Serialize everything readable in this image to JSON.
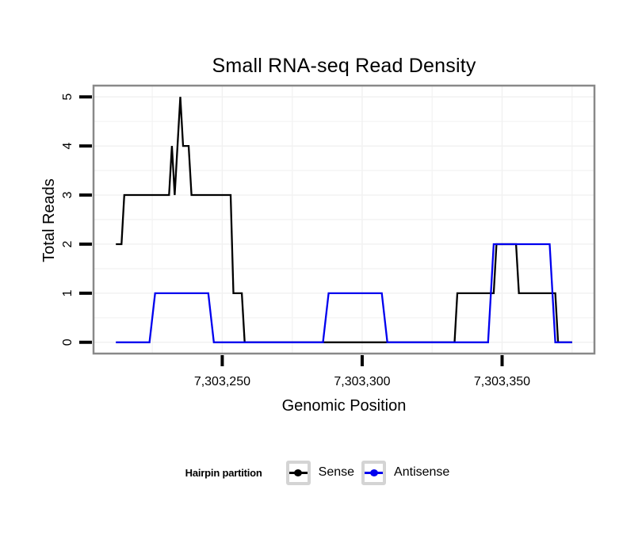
{
  "chart_data": {
    "type": "line",
    "title": "Small RNA-seq Read Density",
    "xlabel": "Genomic Position",
    "ylabel": "Total Reads",
    "x_domain": [
      7303204,
      7303383
    ],
    "y_domain": [
      -0.23,
      5.23
    ],
    "x_ticks": [
      7303250,
      7303300,
      7303350
    ],
    "x_tick_labels": [
      "7,303,250",
      "7,303,300",
      "7,303,350"
    ],
    "x_minor_gridlines": [
      7303225,
      7303275,
      7303325,
      7303375
    ],
    "y_ticks": [
      0,
      1,
      2,
      3,
      4,
      5
    ],
    "y_tick_labels": [
      "0",
      "1",
      "2",
      "3",
      "4",
      "5"
    ],
    "y_minor_gridlines": [
      0.5,
      1.5,
      2.5,
      3.5,
      4.5
    ],
    "grid": true,
    "legend_position": "bottom",
    "legend_title": "Hairpin partition",
    "series": [
      {
        "name": "Sense",
        "color": "#000000",
        "points": [
          [
            7303212,
            2
          ],
          [
            7303214,
            2
          ],
          [
            7303215,
            3
          ],
          [
            7303231,
            3
          ],
          [
            7303232,
            4
          ],
          [
            7303233,
            3
          ],
          [
            7303235,
            5
          ],
          [
            7303236,
            4
          ],
          [
            7303238,
            4
          ],
          [
            7303239,
            3
          ],
          [
            7303253,
            3
          ],
          [
            7303254,
            1
          ],
          [
            7303257,
            1
          ],
          [
            7303258,
            0
          ],
          [
            7303333,
            0
          ],
          [
            7303334,
            1
          ],
          [
            7303347,
            1
          ],
          [
            7303348,
            2
          ],
          [
            7303355,
            2
          ],
          [
            7303356,
            1
          ],
          [
            7303369,
            1
          ],
          [
            7303370,
            0
          ],
          [
            7303375,
            0
          ]
        ]
      },
      {
        "name": "Antisense",
        "color": "#0000EE",
        "points": [
          [
            7303212,
            0
          ],
          [
            7303224,
            0
          ],
          [
            7303226,
            1
          ],
          [
            7303245,
            1
          ],
          [
            7303247,
            0
          ],
          [
            7303286,
            0
          ],
          [
            7303288,
            1
          ],
          [
            7303307,
            1
          ],
          [
            7303309,
            0
          ],
          [
            7303345,
            0
          ],
          [
            7303347,
            2
          ],
          [
            7303367,
            2
          ],
          [
            7303369,
            0
          ],
          [
            7303375,
            0
          ]
        ]
      }
    ]
  },
  "colors": {
    "panel_border": "#898989",
    "grid_major": "#f1f1f1",
    "grid_minor": "#f4f4f4",
    "tick": "#000000",
    "legend_key_border": "#d4d4d4",
    "background": "#ffffff"
  }
}
